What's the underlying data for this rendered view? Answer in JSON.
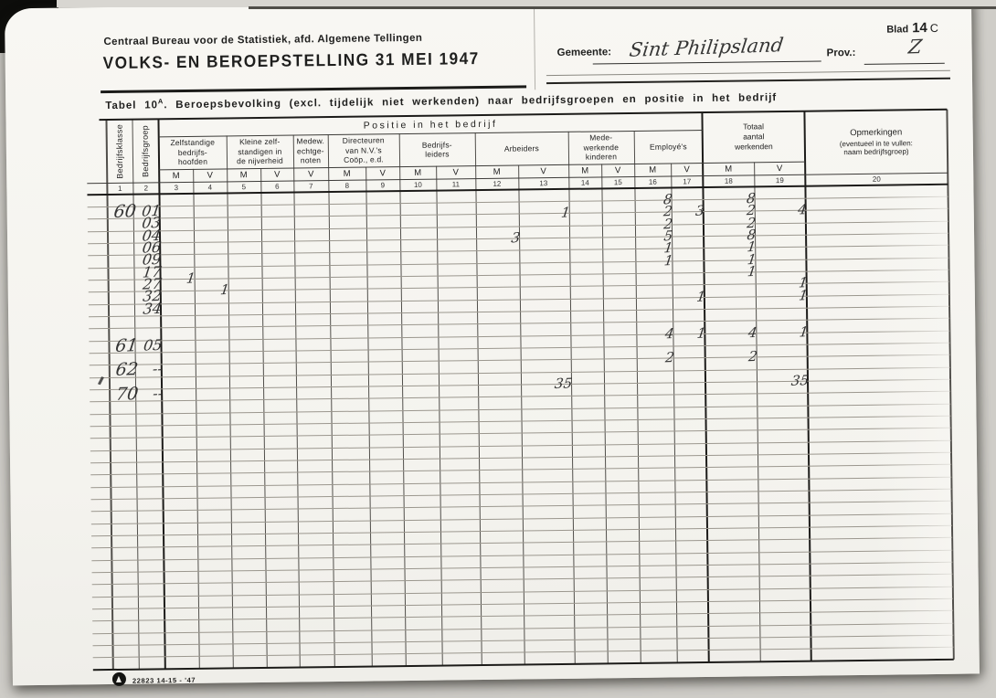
{
  "header": {
    "bureau_line": "Centraal Bureau voor de Statistiek, afd. Algemene Tellingen",
    "title": "VOLKS- EN BEROEPSTELLING 31 MEI 1947",
    "blad_label": "Blad",
    "blad_number": "14",
    "blad_suffix": "C",
    "gemeente_label": "Gemeente:",
    "gemeente_value": "Sint Philipsland",
    "prov_label": "Prov.:",
    "prov_value": "Z"
  },
  "caption": {
    "prefix": "Tabel 10",
    "sup": "A",
    "text": ".  Beroepsbevolking (excl. tijdelijk niet werkenden) naar bedrijfsgroepen en positie in het bedrijf"
  },
  "table": {
    "positie_header": "Positie in het bedrijf",
    "col1_label": "Bedrijfsklasse",
    "col2_label": "Bedrijfsgroep",
    "groups": [
      {
        "lines": [
          "Zelfstandige",
          "bedrijfs-",
          "hoofden"
        ],
        "span": [
          3,
          4
        ]
      },
      {
        "lines": [
          "Kleine zelf-",
          "standigen in",
          "de nijverheid"
        ],
        "span": [
          5,
          6
        ]
      },
      {
        "lines": [
          "Medew.",
          "echtge-",
          "noten"
        ],
        "span": [
          7,
          7
        ]
      },
      {
        "lines": [
          "Directeuren",
          "van N.V.'s",
          "Coöp., e.d."
        ],
        "span": [
          8,
          9
        ]
      },
      {
        "lines": [
          "Bedrijfs-",
          "leiders"
        ],
        "span": [
          10,
          11
        ]
      },
      {
        "lines": [
          "Arbeiders"
        ],
        "span": [
          12,
          13
        ]
      },
      {
        "lines": [
          "Mede-",
          "werkende",
          "kinderen"
        ],
        "span": [
          14,
          15
        ]
      },
      {
        "lines": [
          "Employé's"
        ],
        "span": [
          16,
          17
        ]
      }
    ],
    "totaal_lines": [
      "Totaal",
      "aantal",
      "werkenden"
    ],
    "opmerkingen_lines": [
      "Opmerkingen",
      "(eventueel in te vullen:",
      "naam bedrijfsgroep)"
    ],
    "mv": [
      null,
      null,
      "M",
      "V",
      "M",
      "V",
      "V",
      "M",
      "V",
      "M",
      "V",
      "M",
      "V",
      "M",
      "V",
      "M",
      "V",
      "M",
      "V",
      null
    ],
    "column_numbers": [
      "1",
      "2",
      "3",
      "4",
      "5",
      "6",
      "7",
      "8",
      "9",
      "10",
      "11",
      "12",
      "13",
      "14",
      "15",
      "16",
      "17",
      "18",
      "19",
      "20"
    ],
    "rows": [
      {
        "row": 1,
        "klasse": "60",
        "groep": "01",
        "values": {
          "16": "8",
          "18": "8"
        }
      },
      {
        "row": 2,
        "groep": "03",
        "values": {
          "13": "1",
          "16": "2",
          "17": "3",
          "18": "2",
          "19": "4"
        }
      },
      {
        "row": 3,
        "groep": "04",
        "values": {
          "16": "2",
          "18": "2"
        }
      },
      {
        "row": 4,
        "groep": "06",
        "values": {
          "12": "3",
          "16": "5",
          "18": "8"
        }
      },
      {
        "row": 5,
        "groep": "09",
        "values": {
          "16": "1",
          "18": "1"
        }
      },
      {
        "row": 6,
        "groep": "17",
        "values": {
          "16": "1",
          "18": "1"
        }
      },
      {
        "row": 7,
        "groep": "27",
        "values": {
          "3": "1",
          "18": "1"
        }
      },
      {
        "row": 8,
        "groep": "32",
        "values": {
          "4": "1",
          "19": "1"
        }
      },
      {
        "row": 9,
        "groep": "34",
        "values": {
          "17": "1",
          "19": "1"
        }
      },
      {
        "row": 12,
        "klasse": "61",
        "groep": "05",
        "values": {
          "16": "4",
          "17": "1",
          "18": "4",
          "19": "1"
        }
      },
      {
        "row": 14,
        "klasse": "62",
        "groep": "--",
        "values": {
          "16": "2",
          "18": "2"
        }
      },
      {
        "row": 16,
        "klasse": "70",
        "groep": "--",
        "values": {
          "13": "35",
          "19": "35"
        }
      }
    ]
  },
  "footer": {
    "print_code": "22823 14-15 - '47"
  }
}
